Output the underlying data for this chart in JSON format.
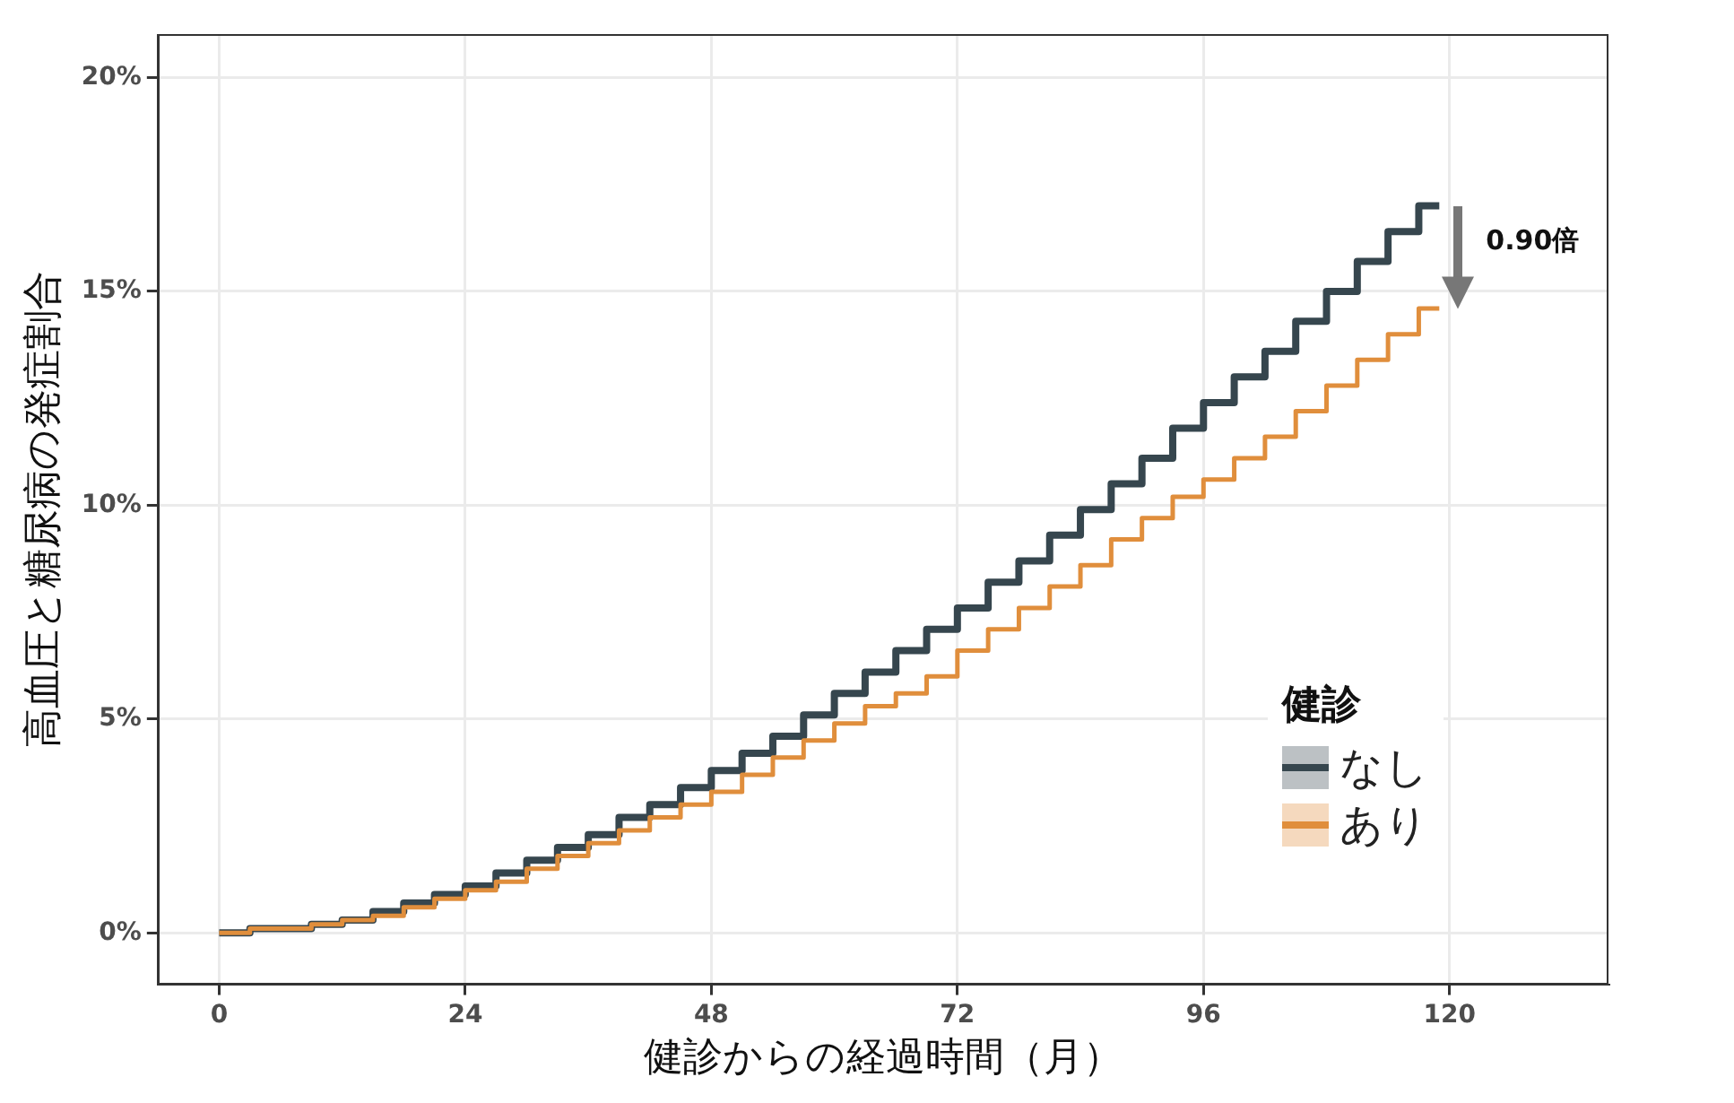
{
  "chart_data": {
    "type": "step",
    "xlabel": "健診からの経過時間（月）",
    "ylabel": "高血圧と糖尿病の発症割合",
    "legend_title": "健診",
    "x": [
      0,
      3,
      6,
      9,
      12,
      15,
      18,
      21,
      24,
      27,
      30,
      33,
      36,
      39,
      42,
      45,
      48,
      51,
      54,
      57,
      60,
      63,
      66,
      69,
      72,
      75,
      78,
      81,
      84,
      87,
      90,
      93,
      96,
      99,
      102,
      105,
      108,
      111,
      114,
      117,
      119
    ],
    "series": [
      {
        "name": "なし",
        "color": "#36464e",
        "values": [
          0,
          0,
          0.1,
          0.1,
          0.2,
          0.3,
          0.5,
          0.7,
          0.9,
          1.1,
          1.4,
          1.7,
          2.0,
          2.3,
          2.7,
          3.0,
          3.4,
          3.8,
          4.2,
          4.6,
          5.1,
          5.6,
          6.1,
          6.6,
          7.1,
          7.6,
          8.2,
          8.7,
          9.3,
          9.9,
          10.5,
          11.1,
          11.8,
          12.4,
          13.0,
          13.6,
          14.3,
          15.0,
          15.7,
          16.4,
          17.0
        ]
      },
      {
        "name": "あり",
        "color": "#e08e3c",
        "values": [
          0,
          0,
          0.1,
          0.1,
          0.2,
          0.3,
          0.4,
          0.6,
          0.8,
          1.0,
          1.2,
          1.5,
          1.8,
          2.1,
          2.4,
          2.7,
          3.0,
          3.3,
          3.7,
          4.1,
          4.5,
          4.9,
          5.3,
          5.6,
          6.0,
          6.6,
          7.1,
          7.6,
          8.1,
          8.6,
          9.2,
          9.7,
          10.2,
          10.6,
          11.1,
          11.6,
          12.2,
          12.8,
          13.4,
          14.0,
          14.6
        ]
      }
    ],
    "xlim": [
      -6,
      135.5
    ],
    "xticks": [
      0,
      24,
      48,
      72,
      96,
      120
    ],
    "ylim": [
      -1.2,
      21
    ],
    "yticks": [
      {
        "value": 0,
        "label": "0%"
      },
      {
        "value": 5,
        "label": "5%"
      },
      {
        "value": 10,
        "label": "10%"
      },
      {
        "value": 15,
        "label": "15%"
      },
      {
        "value": 20,
        "label": "20%"
      }
    ],
    "annotations": [
      "0.90倍"
    ],
    "grid": true,
    "legend": "bottom right",
    "marker": "none",
    "line_style": "solid"
  }
}
